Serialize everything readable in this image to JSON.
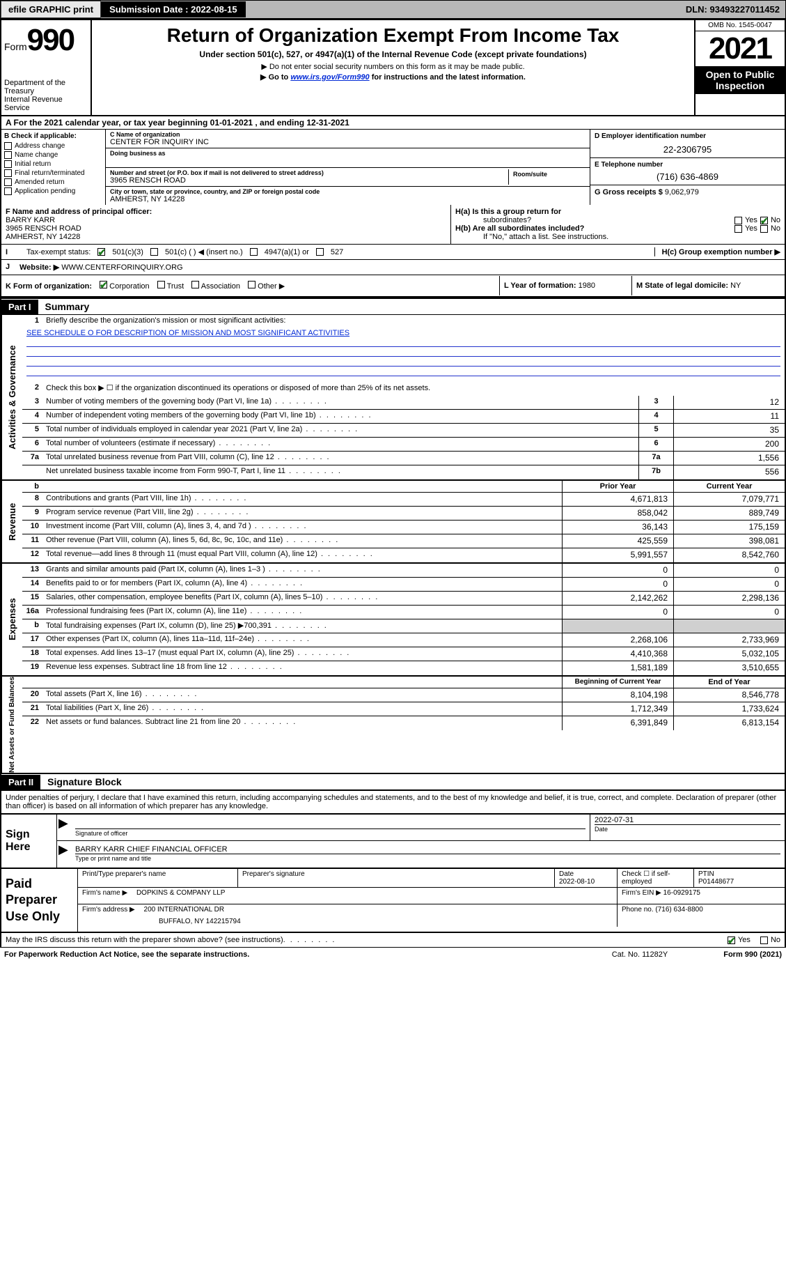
{
  "topbar": {
    "efile": "efile GRAPHIC print",
    "submission_label": "Submission Date : 2022-08-15",
    "dln": "DLN: 93493227011452"
  },
  "header": {
    "form_prefix": "Form",
    "form_num": "990",
    "dept": "Department of the Treasury",
    "irs": "Internal Revenue Service",
    "title": "Return of Organization Exempt From Income Tax",
    "sub": "Under section 501(c), 527, or 4947(a)(1) of the Internal Revenue Code (except private foundations)",
    "note1": "▶ Do not enter social security numbers on this form as it may be made public.",
    "note2_pre": "▶ Go to ",
    "note2_link": "www.irs.gov/Form990",
    "note2_post": " for instructions and the latest information.",
    "omb": "OMB No. 1545-0047",
    "year": "2021",
    "inspection1": "Open to Public",
    "inspection2": "Inspection"
  },
  "section_a": "A For the 2021 calendar year, or tax year beginning 01-01-2021   , and ending 12-31-2021",
  "b": {
    "header": "B Check if applicable:",
    "items": [
      "Address change",
      "Name change",
      "Initial return",
      "Final return/terminated",
      "Amended return",
      "Application pending"
    ]
  },
  "c": {
    "name_label": "C Name of organization",
    "name": "CENTER FOR INQUIRY INC",
    "dba_label": "Doing business as",
    "dba": "",
    "street_label": "Number and street (or P.O. box if mail is not delivered to street address)",
    "room_label": "Room/suite",
    "street": "3965 RENSCH ROAD",
    "city_label": "City or town, state or province, country, and ZIP or foreign postal code",
    "city": "AMHERST, NY  14228"
  },
  "d": {
    "label": "D Employer identification number",
    "val": "22-2306795"
  },
  "e": {
    "label": "E Telephone number",
    "val": "(716) 636-4869"
  },
  "g": {
    "label": "G Gross receipts $",
    "val": "9,062,979"
  },
  "f": {
    "label": "F  Name and address of principal officer:",
    "name": "BARRY KARR",
    "street": "3965 RENSCH ROAD",
    "city": "AMHERST, NY  14228"
  },
  "h": {
    "a_label": "H(a)  Is this a group return for",
    "a_sub": "subordinates?",
    "b_label": "H(b)  Are all subordinates included?",
    "b_note": "If \"No,\" attach a list. See instructions.",
    "c_label": "H(c)  Group exemption number ▶",
    "yes": "Yes",
    "no": "No"
  },
  "i": {
    "label": "Tax-exempt status:",
    "opt1": "501(c)(3)",
    "opt2": "501(c) (  ) ◀ (insert no.)",
    "opt3": "4947(a)(1) or",
    "opt4": "527"
  },
  "j": {
    "label": "Website: ▶",
    "val": "WWW.CENTERFORINQUIRY.ORG"
  },
  "k": {
    "label": "K Form of organization:",
    "opts": [
      "Corporation",
      "Trust",
      "Association",
      "Other ▶"
    ]
  },
  "l": {
    "label": "L Year of formation:",
    "val": "1980"
  },
  "m": {
    "label": "M State of legal domicile:",
    "val": "NY"
  },
  "part1": {
    "label": "Part I",
    "title": "Summary",
    "tab1": "Activities & Governance",
    "tab2": "Revenue",
    "tab3": "Expenses",
    "tab4": "Net Assets or Fund Balances",
    "line1": "Briefly describe the organization's mission or most significant activities:",
    "line1_val": "SEE SCHEDULE O FOR DESCRIPTION OF MISSION AND MOST SIGNIFICANT ACTIVITIES",
    "line2": "Check this box ▶ ☐  if the organization discontinued its operations or disposed of more than 25% of its net assets.",
    "lines_ag": [
      {
        "n": "3",
        "t": "Number of voting members of the governing body (Part VI, line 1a)",
        "c": "3",
        "v": "12"
      },
      {
        "n": "4",
        "t": "Number of independent voting members of the governing body (Part VI, line 1b)",
        "c": "4",
        "v": "11"
      },
      {
        "n": "5",
        "t": "Total number of individuals employed in calendar year 2021 (Part V, line 2a)",
        "c": "5",
        "v": "35"
      },
      {
        "n": "6",
        "t": "Total number of volunteers (estimate if necessary)",
        "c": "6",
        "v": "200"
      },
      {
        "n": "7a",
        "t": "Total unrelated business revenue from Part VIII, column (C), line 12",
        "c": "7a",
        "v": "1,556"
      },
      {
        "n": "",
        "t": "Net unrelated business taxable income from Form 990-T, Part I, line 11",
        "c": "7b",
        "v": "556"
      }
    ],
    "hdr_prior": "Prior Year",
    "hdr_current": "Current Year",
    "lines_rev": [
      {
        "n": "8",
        "t": "Contributions and grants (Part VIII, line 1h)",
        "p": "4,671,813",
        "c": "7,079,771"
      },
      {
        "n": "9",
        "t": "Program service revenue (Part VIII, line 2g)",
        "p": "858,042",
        "c": "889,749"
      },
      {
        "n": "10",
        "t": "Investment income (Part VIII, column (A), lines 3, 4, and 7d )",
        "p": "36,143",
        "c": "175,159"
      },
      {
        "n": "11",
        "t": "Other revenue (Part VIII, column (A), lines 5, 6d, 8c, 9c, 10c, and 11e)",
        "p": "425,559",
        "c": "398,081"
      },
      {
        "n": "12",
        "t": "Total revenue—add lines 8 through 11 (must equal Part VIII, column (A), line 12)",
        "p": "5,991,557",
        "c": "8,542,760"
      }
    ],
    "lines_exp": [
      {
        "n": "13",
        "t": "Grants and similar amounts paid (Part IX, column (A), lines 1–3 )",
        "p": "0",
        "c": "0"
      },
      {
        "n": "14",
        "t": "Benefits paid to or for members (Part IX, column (A), line 4)",
        "p": "0",
        "c": "0"
      },
      {
        "n": "15",
        "t": "Salaries, other compensation, employee benefits (Part IX, column (A), lines 5–10)",
        "p": "2,142,262",
        "c": "2,298,136"
      },
      {
        "n": "16a",
        "t": "Professional fundraising fees (Part IX, column (A), line 11e)",
        "p": "0",
        "c": "0"
      },
      {
        "n": "b",
        "t": "Total fundraising expenses (Part IX, column (D), line 25) ▶700,391",
        "p": "",
        "c": "",
        "shade": true
      },
      {
        "n": "17",
        "t": "Other expenses (Part IX, column (A), lines 11a–11d, 11f–24e)",
        "p": "2,268,106",
        "c": "2,733,969"
      },
      {
        "n": "18",
        "t": "Total expenses. Add lines 13–17 (must equal Part IX, column (A), line 25)",
        "p": "4,410,368",
        "c": "5,032,105"
      },
      {
        "n": "19",
        "t": "Revenue less expenses. Subtract line 18 from line 12",
        "p": "1,581,189",
        "c": "3,510,655"
      }
    ],
    "hdr_beg": "Beginning of Current Year",
    "hdr_end": "End of Year",
    "lines_net": [
      {
        "n": "20",
        "t": "Total assets (Part X, line 16)",
        "p": "8,104,198",
        "c": "8,546,778"
      },
      {
        "n": "21",
        "t": "Total liabilities (Part X, line 26)",
        "p": "1,712,349",
        "c": "1,733,624"
      },
      {
        "n": "22",
        "t": "Net assets or fund balances. Subtract line 21 from line 20",
        "p": "6,391,849",
        "c": "6,813,154"
      }
    ]
  },
  "part2": {
    "label": "Part II",
    "title": "Signature Block",
    "intro": "Under penalties of perjury, I declare that I have examined this return, including accompanying schedules and statements, and to the best of my knowledge and belief, it is true, correct, and complete. Declaration of preparer (other than officer) is based on all information of which preparer has any knowledge.",
    "sign_here": "Sign Here",
    "sig_officer": "Signature of officer",
    "sig_date_label": "Date",
    "sig_date": "2022-07-31",
    "officer_name": "BARRY KARR CHIEF FINANCIAL OFFICER",
    "officer_sub": "Type or print name and title",
    "paid": "Paid Preparer Use Only",
    "prep_name_label": "Print/Type preparer's name",
    "prep_sig_label": "Preparer's signature",
    "prep_date_label": "Date",
    "prep_date": "2022-08-10",
    "check_self": "Check ☐ if self-employed",
    "ptin_label": "PTIN",
    "ptin": "P01448677",
    "firm_name_label": "Firm's name    ▶",
    "firm_name": "DOPKINS & COMPANY LLP",
    "firm_ein_label": "Firm's EIN ▶",
    "firm_ein": "16-0929175",
    "firm_addr_label": "Firm's address ▶",
    "firm_addr1": "200 INTERNATIONAL DR",
    "firm_addr2": "BUFFALO, NY  142215794",
    "firm_phone_label": "Phone no.",
    "firm_phone": "(716) 634-8800",
    "discuss": "May the IRS discuss this return with the preparer shown above? (see instructions)",
    "yes": "Yes",
    "no": "No"
  },
  "footer": {
    "paperwork": "For Paperwork Reduction Act Notice, see the separate instructions.",
    "cat": "Cat. No. 11282Y",
    "form": "Form 990 (2021)"
  }
}
